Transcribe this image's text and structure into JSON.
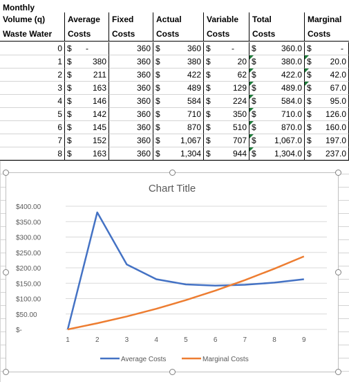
{
  "table": {
    "header_top": "Monthly",
    "header_row1": [
      "Volume (q)",
      "Average",
      "Fixed",
      "Actual",
      "Variable",
      "Total",
      "Marginal"
    ],
    "header_row2": [
      "Waste Water",
      "Costs",
      "Costs",
      "Costs",
      "Costs",
      "Costs",
      "Costs"
    ],
    "rows": [
      {
        "q": "0",
        "avg": "-",
        "fixed": "360",
        "actual": "360",
        "variable": "-",
        "total": "360.0",
        "marginal": "-"
      },
      {
        "q": "1",
        "avg": "380",
        "fixed": "360",
        "actual": "380",
        "variable": "20",
        "total": "380.0",
        "marginal": "20.0"
      },
      {
        "q": "2",
        "avg": "211",
        "fixed": "360",
        "actual": "422",
        "variable": "62",
        "total": "422.0",
        "marginal": "42.0"
      },
      {
        "q": "3",
        "avg": "163",
        "fixed": "360",
        "actual": "489",
        "variable": "129",
        "total": "489.0",
        "marginal": "67.0"
      },
      {
        "q": "4",
        "avg": "146",
        "fixed": "360",
        "actual": "584",
        "variable": "224",
        "total": "584.0",
        "marginal": "95.0"
      },
      {
        "q": "5",
        "avg": "142",
        "fixed": "360",
        "actual": "710",
        "variable": "350",
        "total": "710.0",
        "marginal": "126.0"
      },
      {
        "q": "6",
        "avg": "145",
        "fixed": "360",
        "actual": "870",
        "variable": "510",
        "total": "870.0",
        "marginal": "160.0"
      },
      {
        "q": "7",
        "avg": "152",
        "fixed": "360",
        "actual": "1,067",
        "variable": "707",
        "total": "1,067.0",
        "marginal": "197.0"
      },
      {
        "q": "8",
        "avg": "163",
        "fixed": "360",
        "actual": "1,304",
        "variable": "944",
        "total": "1,304.0",
        "marginal": "237.0"
      }
    ],
    "currency_symbol": "$"
  },
  "chart_data": {
    "type": "line",
    "title": "Chart Title",
    "categories": [
      "1",
      "2",
      "3",
      "4",
      "5",
      "6",
      "7",
      "8",
      "9"
    ],
    "series": [
      {
        "name": "Average Costs",
        "color": "#4472c4",
        "values": [
          0,
          380,
          211,
          163,
          146,
          142,
          145,
          152,
          163
        ]
      },
      {
        "name": "Marginal Costs",
        "color": "#ed7d31",
        "values": [
          0,
          20,
          42,
          67,
          95,
          126,
          160,
          197,
          237
        ]
      }
    ],
    "ylim": [
      0,
      400
    ],
    "yticks": [
      "$-",
      "$50.00",
      "$100.00",
      "$150.00",
      "$200.00",
      "$250.00",
      "$300.00",
      "$350.00",
      "$400.00"
    ],
    "grid": true,
    "legend_position": "bottom"
  }
}
